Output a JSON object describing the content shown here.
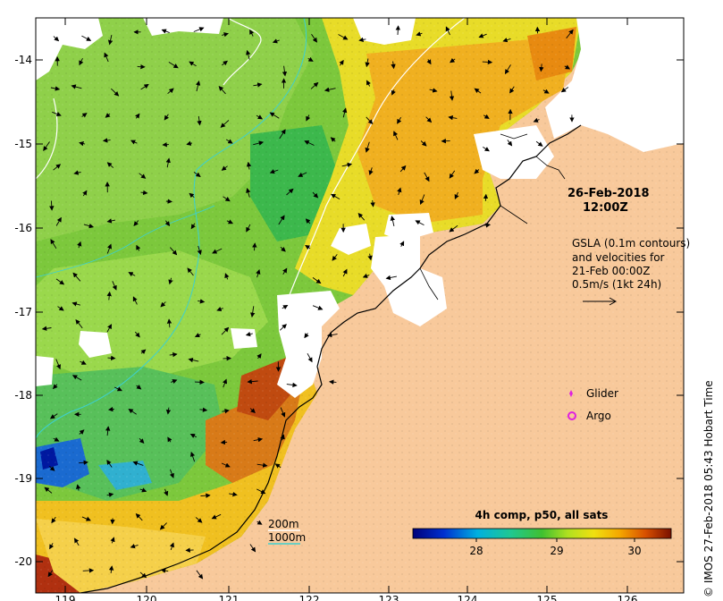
{
  "map": {
    "x_ticks": [
      "119",
      "120",
      "121",
      "122",
      "123",
      "124",
      "125",
      "126"
    ],
    "y_ticks": [
      "-14",
      "-15",
      "-16",
      "-17",
      "-18",
      "-19",
      "-20"
    ],
    "date_line": "26-Feb-2018",
    "time_line": "12:00Z",
    "gsla_lines": [
      "GSLA (0.1m contours)",
      "and velocities for",
      "21-Feb 00:00Z",
      "0.5m/s (1kt 24h)"
    ],
    "legend": {
      "glider": "Glider",
      "argo": "Argo"
    },
    "depth_legend": {
      "line_200": "200m",
      "line_1000": "1000m"
    },
    "colorbar": {
      "title": "4h comp, p50, all sats",
      "ticks": [
        "28",
        "29",
        "30"
      ]
    },
    "credit": "© IMOS 27-Feb-2018 05:43 Hobart Time",
    "colors": {
      "land": "#f8c99b",
      "contour_200": "#ffffff",
      "contour_1000": "#3dd0d0",
      "glider": "#e020e0",
      "argo": "#e020e0"
    }
  }
}
